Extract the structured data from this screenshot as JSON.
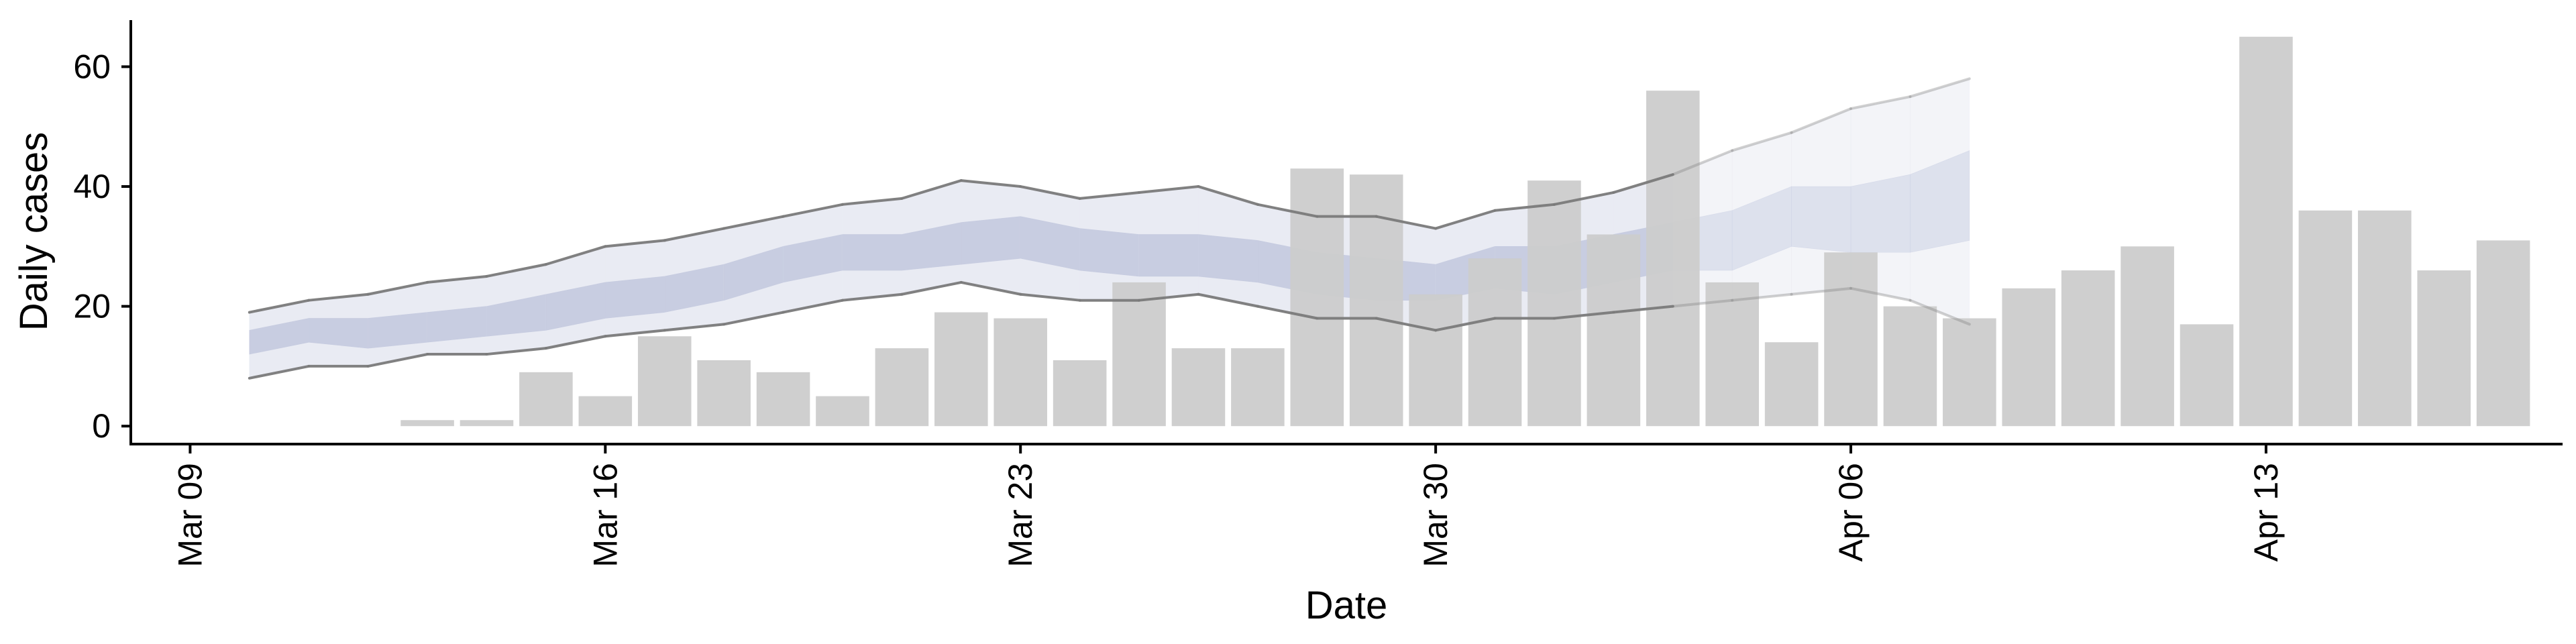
{
  "chart_data": {
    "type": "bar",
    "xlabel": "Date",
    "ylabel": "Daily cases",
    "xlim": [
      "2020-03-08",
      "2020-04-18"
    ],
    "ylim": [
      -3,
      68
    ],
    "x_ticks": [
      "2020-03-09",
      "2020-03-16",
      "2020-03-23",
      "2020-03-30",
      "2020-04-06",
      "2020-04-13"
    ],
    "x_tick_labels": [
      "Mar 09",
      "Mar 16",
      "Mar 23",
      "Mar 30",
      "Apr 06",
      "Apr 13"
    ],
    "y_ticks": [
      0,
      20,
      40,
      60
    ],
    "y_tick_labels": [
      "0",
      "20",
      "40",
      "60"
    ],
    "grid": false,
    "legend": false,
    "bars": {
      "color": "#cccccc",
      "x": [
        "2020-03-13",
        "2020-03-14",
        "2020-03-15",
        "2020-03-16",
        "2020-03-17",
        "2020-03-18",
        "2020-03-19",
        "2020-03-20",
        "2020-03-21",
        "2020-03-22",
        "2020-03-23",
        "2020-03-24",
        "2020-03-25",
        "2020-03-26",
        "2020-03-27",
        "2020-03-28",
        "2020-03-29",
        "2020-03-30",
        "2020-03-31",
        "2020-04-01",
        "2020-04-02",
        "2020-04-03",
        "2020-04-04",
        "2020-04-05",
        "2020-04-06",
        "2020-04-07",
        "2020-04-08",
        "2020-04-09",
        "2020-04-10",
        "2020-04-11",
        "2020-04-12",
        "2020-04-13",
        "2020-04-14",
        "2020-04-15",
        "2020-04-16",
        "2020-04-17"
      ],
      "values": [
        1,
        1,
        9,
        5,
        15,
        11,
        9,
        5,
        13,
        19,
        18,
        11,
        24,
        13,
        13,
        43,
        42,
        22,
        28,
        41,
        32,
        56,
        24,
        14,
        29,
        20,
        18,
        23,
        26,
        30,
        17,
        65,
        36,
        36,
        26,
        31
      ]
    },
    "bands": {
      "x": [
        "2020-03-10",
        "2020-03-11",
        "2020-03-12",
        "2020-03-13",
        "2020-03-14",
        "2020-03-15",
        "2020-03-16",
        "2020-03-17",
        "2020-03-18",
        "2020-03-19",
        "2020-03-20",
        "2020-03-21",
        "2020-03-22",
        "2020-03-23",
        "2020-03-24",
        "2020-03-25",
        "2020-03-26",
        "2020-03-27",
        "2020-03-28",
        "2020-03-29",
        "2020-03-30",
        "2020-03-31",
        "2020-04-01",
        "2020-04-02",
        "2020-04-03",
        "2020-04-04",
        "2020-04-05",
        "2020-04-06",
        "2020-04-07",
        "2020-04-08"
      ],
      "estimate_until": "2020-04-03",
      "outer_lower": [
        8,
        10,
        10,
        12,
        12,
        13,
        15,
        16,
        17,
        19,
        21,
        22,
        24,
        22,
        21,
        21,
        22,
        20,
        18,
        18,
        16,
        18,
        18,
        19,
        20,
        21,
        22,
        23,
        21,
        17
      ],
      "outer_upper": [
        19,
        21,
        22,
        24,
        25,
        27,
        30,
        31,
        33,
        35,
        37,
        38,
        41,
        40,
        38,
        39,
        40,
        37,
        35,
        35,
        33,
        36,
        37,
        39,
        42,
        46,
        49,
        53,
        55,
        58
      ],
      "inner_lower": [
        12,
        14,
        13,
        14,
        15,
        16,
        18,
        19,
        21,
        24,
        26,
        26,
        27,
        28,
        26,
        25,
        25,
        24,
        22,
        21,
        21,
        23,
        22,
        24,
        26,
        26,
        30,
        29,
        29,
        31
      ],
      "inner_upper": [
        16,
        18,
        18,
        19,
        20,
        22,
        24,
        25,
        27,
        30,
        32,
        32,
        34,
        35,
        33,
        32,
        32,
        31,
        29,
        28,
        27,
        30,
        30,
        32,
        34,
        36,
        40,
        40,
        42,
        46
      ],
      "outer_color": "#e9ebf3",
      "inner_color": "#c4cadf",
      "line_color": "#7a7a7a"
    }
  }
}
